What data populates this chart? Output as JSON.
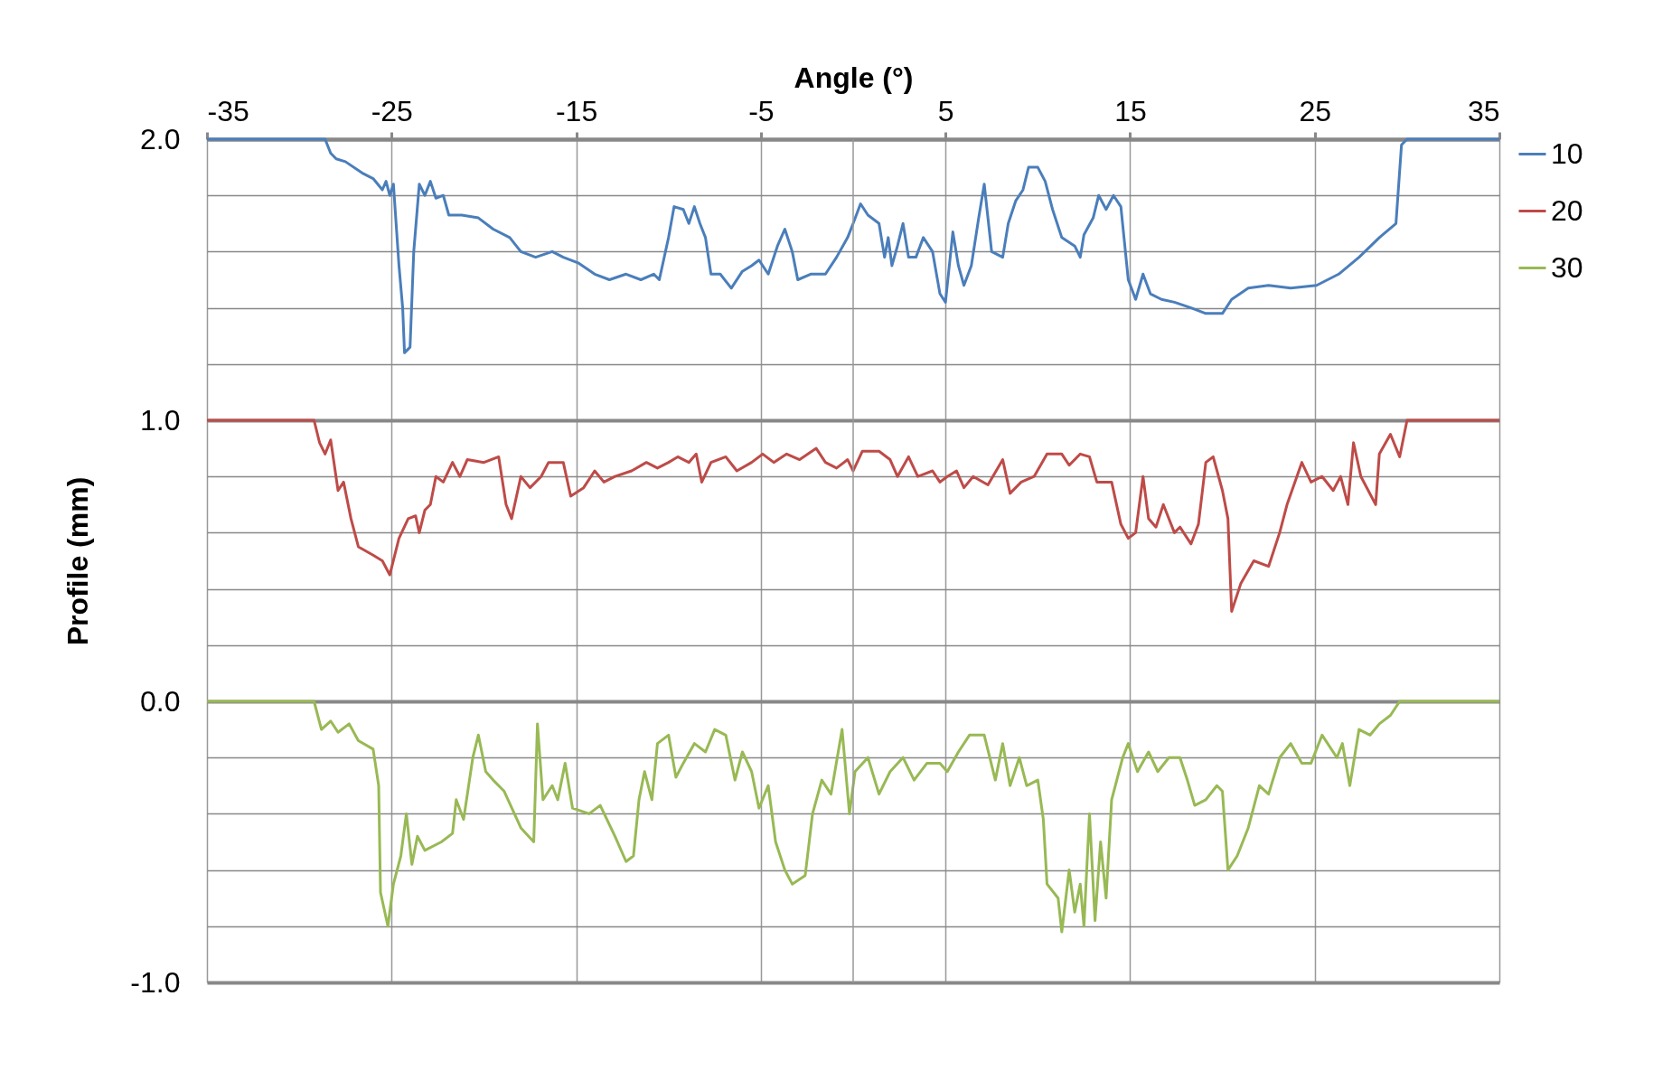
{
  "chart_data": {
    "type": "line",
    "xlabel": "Angle (°)",
    "ylabel": "Profile (mm)",
    "xlim": [
      -35,
      35
    ],
    "xticks": [
      -35,
      -25,
      -15,
      -5,
      5,
      15,
      25,
      35
    ],
    "ylim": [
      -1,
      2
    ],
    "yticks": [
      {
        "value": 2,
        "label": "2.0"
      },
      {
        "value": 1.8,
        "label": null
      },
      {
        "value": 1.6,
        "label": null
      },
      {
        "value": 1.4,
        "label": null
      },
      {
        "value": 1.2,
        "label": null
      },
      {
        "value": 1,
        "label": "1.0"
      },
      {
        "value": 0.8,
        "label": null
      },
      {
        "value": 0.6,
        "label": null
      },
      {
        "value": 0.4,
        "label": null
      },
      {
        "value": 0.2,
        "label": null
      },
      {
        "value": 0,
        "label": "0.0"
      },
      {
        "value": -0.2,
        "label": null
      },
      {
        "value": -0.4,
        "label": null
      },
      {
        "value": -0.6,
        "label": null
      },
      {
        "value": -0.8,
        "label": null
      },
      {
        "value": -1,
        "label": "-1.0"
      }
    ],
    "grid": true,
    "legend": "right",
    "marker": "none",
    "line_style": "solid",
    "ref_lines": [
      {
        "axis": "x",
        "value": 0
      }
    ],
    "series": [
      {
        "name": "10",
        "color": "#4a7ebb",
        "x": [
          -35,
          -28.6,
          -28.3,
          -28,
          -27.5,
          -26.6,
          -26,
          -25.5,
          -25.3,
          -25.1,
          -24.9,
          -24.6,
          -24.4,
          -24.3,
          -24,
          -23.8,
          -23.5,
          -23.2,
          -22.9,
          -22.6,
          -22.2,
          -21.9,
          -21.2,
          -20.3,
          -19.5,
          -18.6,
          -18,
          -17.2,
          -16.3,
          -15.7,
          -14.9,
          -14,
          -13.2,
          -12.3,
          -11.5,
          -10.8,
          -10.5,
          -10,
          -9.7,
          -9.2,
          -8.9,
          -8.6,
          -8.3,
          -8,
          -7.7,
          -7.2,
          -6.6,
          -6,
          -5.5,
          -5.1,
          -4.6,
          -4.1,
          -3.7,
          -3.3,
          -3,
          -2.3,
          -1.5,
          -0.9,
          -0.3,
          0,
          0.4,
          0.8,
          1.4,
          1.7,
          1.9,
          2.1,
          2.4,
          2.7,
          3,
          3.4,
          3.8,
          4.3,
          4.7,
          5,
          5.4,
          5.7,
          6,
          6.4,
          6.8,
          7.1,
          7.5,
          8.1,
          8.4,
          8.8,
          9.2,
          9.5,
          10,
          10.4,
          10.8,
          11.3,
          12,
          12.3,
          12.5,
          13,
          13.3,
          13.7,
          14.1,
          14.5,
          14.9,
          15.3,
          15.7,
          16.1,
          16.7,
          17.4,
          18.3,
          19.1,
          20,
          20.5,
          21.4,
          22.5,
          23.7,
          25.1,
          26.3,
          27.4,
          28.5,
          29.4,
          29.7,
          30,
          35
        ],
        "values": [
          2,
          2,
          1.95,
          1.93,
          1.92,
          1.88,
          1.86,
          1.82,
          1.85,
          1.8,
          1.84,
          1.55,
          1.4,
          1.24,
          1.26,
          1.6,
          1.84,
          1.8,
          1.85,
          1.79,
          1.8,
          1.73,
          1.73,
          1.72,
          1.68,
          1.65,
          1.6,
          1.58,
          1.6,
          1.58,
          1.56,
          1.52,
          1.5,
          1.52,
          1.5,
          1.52,
          1.5,
          1.65,
          1.76,
          1.75,
          1.7,
          1.76,
          1.7,
          1.65,
          1.52,
          1.52,
          1.47,
          1.53,
          1.55,
          1.57,
          1.52,
          1.62,
          1.68,
          1.6,
          1.5,
          1.52,
          1.52,
          1.58,
          1.65,
          1.7,
          1.77,
          1.73,
          1.7,
          1.58,
          1.65,
          1.55,
          1.62,
          1.7,
          1.58,
          1.58,
          1.65,
          1.6,
          1.45,
          1.42,
          1.67,
          1.55,
          1.48,
          1.55,
          1.72,
          1.84,
          1.6,
          1.58,
          1.7,
          1.78,
          1.82,
          1.9,
          1.9,
          1.85,
          1.75,
          1.65,
          1.62,
          1.58,
          1.66,
          1.72,
          1.8,
          1.75,
          1.8,
          1.76,
          1.5,
          1.43,
          1.52,
          1.45,
          1.43,
          1.42,
          1.4,
          1.38,
          1.38,
          1.43,
          1.47,
          1.48,
          1.47,
          1.48,
          1.52,
          1.58,
          1.65,
          1.7,
          1.98,
          2,
          2
        ]
      },
      {
        "name": "20",
        "color": "#be4b48",
        "x": [
          -35,
          -29.2,
          -28.9,
          -28.6,
          -28.3,
          -27.9,
          -27.6,
          -27.2,
          -26.8,
          -26,
          -25.5,
          -25.1,
          -24.6,
          -24.1,
          -23.7,
          -23.5,
          -23.2,
          -22.9,
          -22.6,
          -22.2,
          -21.7,
          -21.3,
          -20.9,
          -20,
          -19.2,
          -18.8,
          -18.5,
          -18,
          -17.5,
          -16.9,
          -16.5,
          -15.7,
          -15.3,
          -14.6,
          -14,
          -13.5,
          -12.9,
          -12,
          -11.2,
          -10.6,
          -10,
          -9.5,
          -8.9,
          -8.5,
          -8.2,
          -7.7,
          -6.9,
          -6.3,
          -5.5,
          -4.9,
          -4.3,
          -3.6,
          -2.9,
          -2,
          -1.5,
          -0.9,
          -0.3,
          0,
          0.5,
          1.4,
          2,
          2.4,
          3,
          3.5,
          4.3,
          4.7,
          5.1,
          5.6,
          6,
          6.5,
          7.3,
          8.1,
          8.5,
          9.1,
          9.8,
          10.5,
          11.3,
          11.7,
          12.3,
          12.8,
          13.2,
          14,
          14.5,
          14.9,
          15.3,
          15.7,
          16,
          16.4,
          16.8,
          17.4,
          17.7,
          18.3,
          18.7,
          19.1,
          19.5,
          20,
          20.3,
          20.5,
          21,
          21.7,
          22.5,
          23.1,
          23.5,
          24.3,
          24.8,
          25.4,
          26,
          26.4,
          26.8,
          27.1,
          27.5,
          28.3,
          28.5,
          29.1,
          29.6,
          30,
          35
        ],
        "values": [
          1,
          1,
          0.92,
          0.88,
          0.93,
          0.75,
          0.78,
          0.65,
          0.55,
          0.52,
          0.5,
          0.45,
          0.58,
          0.65,
          0.66,
          0.6,
          0.68,
          0.7,
          0.8,
          0.78,
          0.85,
          0.8,
          0.86,
          0.85,
          0.87,
          0.7,
          0.65,
          0.8,
          0.76,
          0.8,
          0.85,
          0.85,
          0.73,
          0.76,
          0.82,
          0.78,
          0.8,
          0.82,
          0.85,
          0.83,
          0.85,
          0.87,
          0.85,
          0.88,
          0.78,
          0.85,
          0.87,
          0.82,
          0.85,
          0.88,
          0.85,
          0.88,
          0.86,
          0.9,
          0.85,
          0.83,
          0.86,
          0.82,
          0.89,
          0.89,
          0.86,
          0.8,
          0.87,
          0.8,
          0.82,
          0.78,
          0.8,
          0.82,
          0.76,
          0.8,
          0.77,
          0.86,
          0.74,
          0.78,
          0.8,
          0.88,
          0.88,
          0.84,
          0.88,
          0.87,
          0.78,
          0.78,
          0.63,
          0.58,
          0.6,
          0.8,
          0.65,
          0.62,
          0.7,
          0.6,
          0.62,
          0.56,
          0.63,
          0.85,
          0.87,
          0.75,
          0.65,
          0.32,
          0.42,
          0.5,
          0.48,
          0.6,
          0.7,
          0.85,
          0.78,
          0.8,
          0.75,
          0.8,
          0.7,
          0.92,
          0.8,
          0.7,
          0.88,
          0.95,
          0.87,
          1,
          1
        ]
      },
      {
        "name": "30",
        "color": "#98b954",
        "x": [
          -35,
          -29.2,
          -28.8,
          -28.3,
          -27.9,
          -27.3,
          -26.8,
          -26,
          -25.7,
          -25.6,
          -25.2,
          -24.9,
          -24.5,
          -24.2,
          -23.9,
          -23.6,
          -23.2,
          -22.3,
          -21.7,
          -21.5,
          -21.1,
          -20.6,
          -20.3,
          -19.9,
          -19.5,
          -18.9,
          -18,
          -17.3,
          -17.1,
          -16.8,
          -16.3,
          -16,
          -15.6,
          -15.2,
          -14.3,
          -13.7,
          -12.9,
          -12.3,
          -11.9,
          -11.6,
          -11.3,
          -10.9,
          -10.6,
          -10,
          -9.6,
          -9.2,
          -8.6,
          -8,
          -7.5,
          -6.9,
          -6.4,
          -6,
          -5.5,
          -5.1,
          -4.6,
          -4.2,
          -3.7,
          -3.3,
          -2.6,
          -2.2,
          -1.7,
          -1.2,
          -0.6,
          -0.2,
          0.1,
          0.8,
          1.4,
          2,
          2.7,
          3.3,
          4,
          4.7,
          5.1,
          5.7,
          6.3,
          7.1,
          7.7,
          8.1,
          8.5,
          9,
          9.4,
          10,
          10.3,
          10.5,
          11.1,
          11.3,
          11.7,
          12,
          12.3,
          12.5,
          12.8,
          13.1,
          13.4,
          13.7,
          14,
          14.6,
          14.9,
          15.4,
          16,
          16.5,
          17.1,
          17.7,
          18.1,
          18.5,
          19.1,
          19.7,
          20,
          20.3,
          20.8,
          21.4,
          22,
          22.5,
          23.1,
          23.7,
          24.3,
          24.8,
          25.4,
          26.2,
          26.5,
          26.9,
          27.4,
          28,
          28.5,
          29.1,
          29.6,
          35
        ],
        "values": [
          0,
          0,
          -0.1,
          -0.07,
          -0.11,
          -0.08,
          -0.14,
          -0.17,
          -0.3,
          -0.68,
          -0.8,
          -0.65,
          -0.55,
          -0.4,
          -0.58,
          -0.48,
          -0.53,
          -0.5,
          -0.47,
          -0.35,
          -0.42,
          -0.2,
          -0.12,
          -0.25,
          -0.28,
          -0.32,
          -0.45,
          -0.5,
          -0.08,
          -0.35,
          -0.3,
          -0.35,
          -0.22,
          -0.38,
          -0.4,
          -0.37,
          -0.48,
          -0.57,
          -0.55,
          -0.35,
          -0.25,
          -0.35,
          -0.15,
          -0.12,
          -0.27,
          -0.22,
          -0.15,
          -0.18,
          -0.1,
          -0.12,
          -0.28,
          -0.18,
          -0.25,
          -0.38,
          -0.3,
          -0.5,
          -0.6,
          -0.65,
          -0.62,
          -0.4,
          -0.28,
          -0.33,
          -0.1,
          -0.4,
          -0.25,
          -0.2,
          -0.33,
          -0.25,
          -0.2,
          -0.28,
          -0.22,
          -0.22,
          -0.25,
          -0.18,
          -0.12,
          -0.12,
          -0.28,
          -0.15,
          -0.3,
          -0.2,
          -0.3,
          -0.28,
          -0.42,
          -0.65,
          -0.7,
          -0.82,
          -0.6,
          -0.75,
          -0.65,
          -0.8,
          -0.4,
          -0.78,
          -0.5,
          -0.7,
          -0.35,
          -0.2,
          -0.15,
          -0.25,
          -0.18,
          -0.25,
          -0.2,
          -0.2,
          -0.28,
          -0.37,
          -0.35,
          -0.3,
          -0.32,
          -0.6,
          -0.55,
          -0.45,
          -0.3,
          -0.33,
          -0.2,
          -0.15,
          -0.22,
          -0.22,
          -0.12,
          -0.2,
          -0.15,
          -0.3,
          -0.1,
          -0.12,
          -0.08,
          -0.05,
          0,
          0
        ]
      }
    ]
  }
}
